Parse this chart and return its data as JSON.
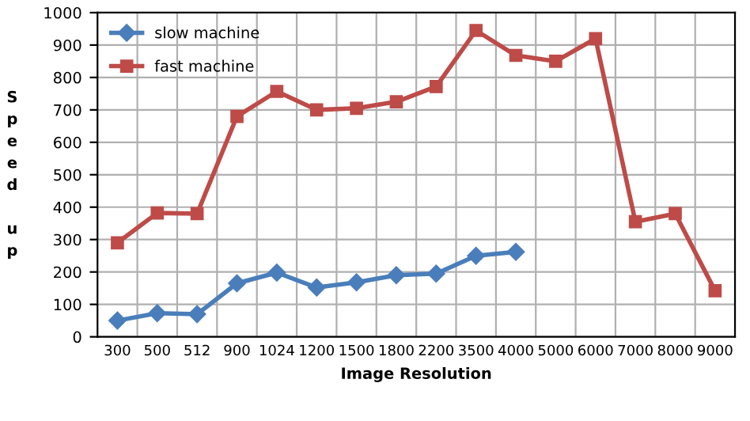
{
  "chart_data": {
    "type": "line",
    "xlabel": "Image Resolution",
    "ylabel": "Speed up",
    "categories": [
      "300",
      "500",
      "512",
      "900",
      "1024",
      "1200",
      "1500",
      "1800",
      "2200",
      "3500",
      "4000",
      "5000",
      "6000",
      "7000",
      "8000",
      "9000"
    ],
    "series": [
      {
        "name": "slow machine",
        "color": "#4a7ebb",
        "marker": "diamond",
        "values": [
          50,
          73,
          70,
          165,
          198,
          152,
          168,
          190,
          195,
          250,
          262,
          null,
          null,
          null,
          null,
          null
        ]
      },
      {
        "name": "fast machine",
        "color": "#be4b48",
        "marker": "square",
        "values": [
          290,
          382,
          380,
          680,
          757,
          700,
          705,
          725,
          772,
          945,
          868,
          850,
          920,
          355,
          380,
          142
        ]
      }
    ],
    "ylim": [
      0,
      1000
    ],
    "yticks": [
      0,
      100,
      200,
      300,
      400,
      500,
      600,
      700,
      800,
      900,
      1000
    ],
    "grid": true,
    "legend": "top left",
    "line_style": "solid"
  }
}
